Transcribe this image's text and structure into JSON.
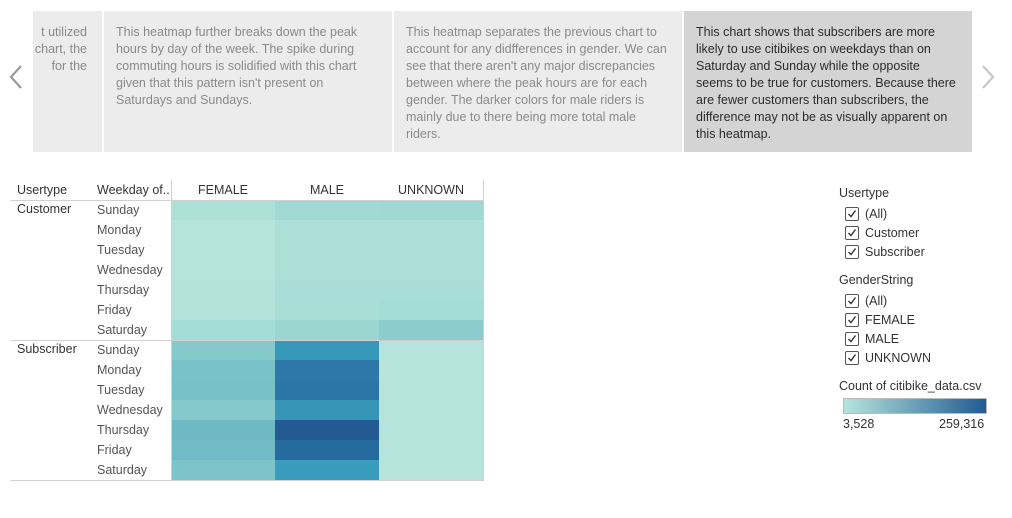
{
  "story": {
    "points": [
      {
        "lines": [
          "t utilized",
          "chart, the",
          "for the"
        ],
        "active": false
      },
      {
        "text": "This heatmap further breaks down the peak hours by day of the week. The spike during commuting hours is solidified with this chart given that this pattern isn't present on Saturdays and Sundays.",
        "active": false
      },
      {
        "text": "This heatmap separates the previous chart to account for any didfferences in gender. We can see that there aren't any major discrepancies between where the peak hours are for each gender. The darker colors for male riders is mainly due to there being more total male riders.",
        "active": false
      },
      {
        "text": "This chart shows that subscribers are more likely to use citibikes on weekdays than on Saturday and Sunday while the opposite seems to be true for customers. Because there are fewer customers than subscribers, the difference may not be as visually apparent on this heatmap.",
        "active": true
      }
    ]
  },
  "table": {
    "headers": {
      "usertype": "Usertype",
      "weekday": "Weekday of..",
      "cols": [
        "FEMALE",
        "MALE",
        "UNKNOWN"
      ]
    },
    "groups": [
      {
        "label": "Customer",
        "days": [
          "Sunday",
          "Monday",
          "Tuesday",
          "Wednesday",
          "Thursday",
          "Friday",
          "Saturday"
        ],
        "colors": [
          [
            "#ace0d7",
            "#a1dad4",
            "#a0d9d4"
          ],
          [
            "#b5e4dc",
            "#abdfd8",
            "#abdfd8"
          ],
          [
            "#b5e4dc",
            "#abdfd8",
            "#abdfd8"
          ],
          [
            "#b5e4dc",
            "#acdfd8",
            "#acdfd8"
          ],
          [
            "#b4e3db",
            "#a8ded7",
            "#a9ded8"
          ],
          [
            "#b3e3db",
            "#a9ded7",
            "#a4dcd6"
          ],
          [
            "#a4dcd6",
            "#9bd6d1",
            "#8dccce"
          ]
        ]
      },
      {
        "label": "Subscriber",
        "days": [
          "Sunday",
          "Monday",
          "Tuesday",
          "Wednesday",
          "Thursday",
          "Friday",
          "Saturday"
        ],
        "colors": [
          [
            "#86c9cb",
            "#3699ba",
            "#b6e4dc"
          ],
          [
            "#7ac2c9",
            "#2d78a8",
            "#b6e4dc"
          ],
          [
            "#78c1c8",
            "#2c76a7",
            "#b6e4dc"
          ],
          [
            "#86c9cc",
            "#3596b8",
            "#b6e4dc"
          ],
          [
            "#6dbac5",
            "#225a91",
            "#b6e4dc"
          ],
          [
            "#71bcc6",
            "#266b9e",
            "#b6e4dc"
          ],
          [
            "#7cc3ca",
            "#3a9cbc",
            "#b6e4dc"
          ]
        ]
      }
    ]
  },
  "legend": {
    "usertype": {
      "title": "Usertype",
      "items": [
        "(All)",
        "Customer",
        "Subscriber"
      ]
    },
    "gender": {
      "title": "GenderString",
      "items": [
        "(All)",
        "FEMALE",
        "MALE",
        "UNKNOWN"
      ]
    },
    "color": {
      "title": "Count of citibike_data.csv",
      "min": "3,528",
      "max": "259,316",
      "from": "#b6e4dc",
      "to": "#215b92"
    }
  }
}
